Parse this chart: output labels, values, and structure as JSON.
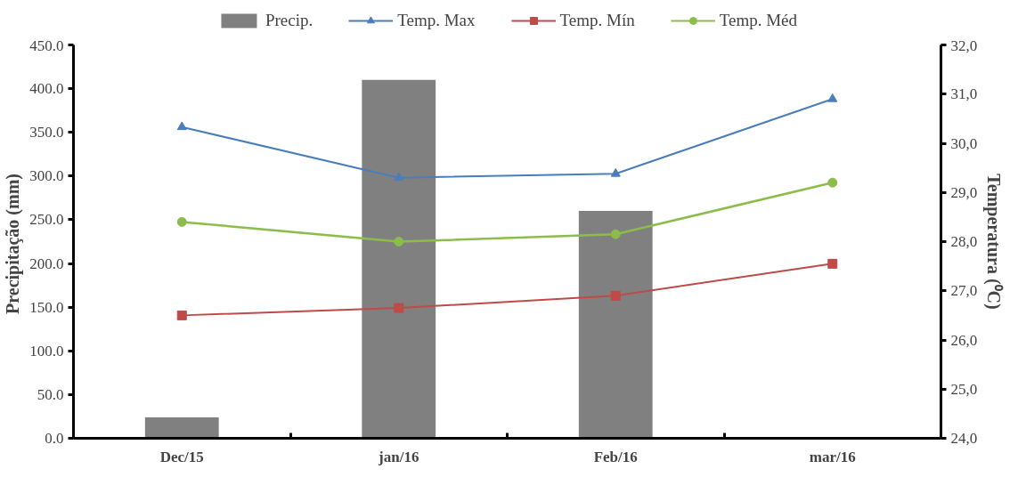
{
  "chart_data": {
    "type": "bar",
    "categories": [
      "Dec/15",
      "jan/16",
      "Feb/16",
      "mar/16"
    ],
    "series": [
      {
        "name": "Precip.",
        "color": "#808080",
        "values": [
          24,
          410,
          260,
          null
        ]
      },
      {
        "name": "Temp. Max",
        "type": "line",
        "axis": "y2",
        "marker": "triangle",
        "color": "#4a7ebb",
        "values": [
          30.33,
          29.3,
          29.38,
          30.9
        ]
      },
      {
        "name": "Temp. Mín",
        "type": "line",
        "axis": "y2",
        "marker": "square",
        "color": "#be4b48",
        "values": [
          26.5,
          26.65,
          26.9,
          27.55
        ]
      },
      {
        "name": "Temp. Méd",
        "type": "line",
        "axis": "y2",
        "marker": "circle",
        "color": "#8cbd4b",
        "values": [
          28.4,
          28.0,
          28.15,
          29.2
        ]
      }
    ],
    "ylabel": "Precipitação  (mm)",
    "y2label": "Temperatura (⁰C)",
    "ylim": [
      0,
      450
    ],
    "yticks": [
      {
        "value": 0,
        "label": "0.0"
      },
      {
        "value": 50,
        "label": "50.0"
      },
      {
        "value": 100,
        "label": "100.0"
      },
      {
        "value": 150,
        "label": "150.0"
      },
      {
        "value": 200,
        "label": "200.0"
      },
      {
        "value": 250,
        "label": "250.0"
      },
      {
        "value": 300,
        "label": "300.0"
      },
      {
        "value": 350,
        "label": "350.0"
      },
      {
        "value": 400,
        "label": "400.0"
      },
      {
        "value": 450,
        "label": "450.0"
      }
    ],
    "y2lim": [
      24,
      32
    ],
    "y2ticks": [
      {
        "value": 24,
        "label": "24,0"
      },
      {
        "value": 25,
        "label": "25,0"
      },
      {
        "value": 26,
        "label": "26,0"
      },
      {
        "value": 27,
        "label": "27,0"
      },
      {
        "value": 28,
        "label": "28,0"
      },
      {
        "value": 29,
        "label": "29,0"
      },
      {
        "value": 30,
        "label": "30,0"
      },
      {
        "value": 31,
        "label": "31,0"
      },
      {
        "value": 32,
        "label": "32,0"
      }
    ],
    "legend": "top",
    "grid": false
  }
}
